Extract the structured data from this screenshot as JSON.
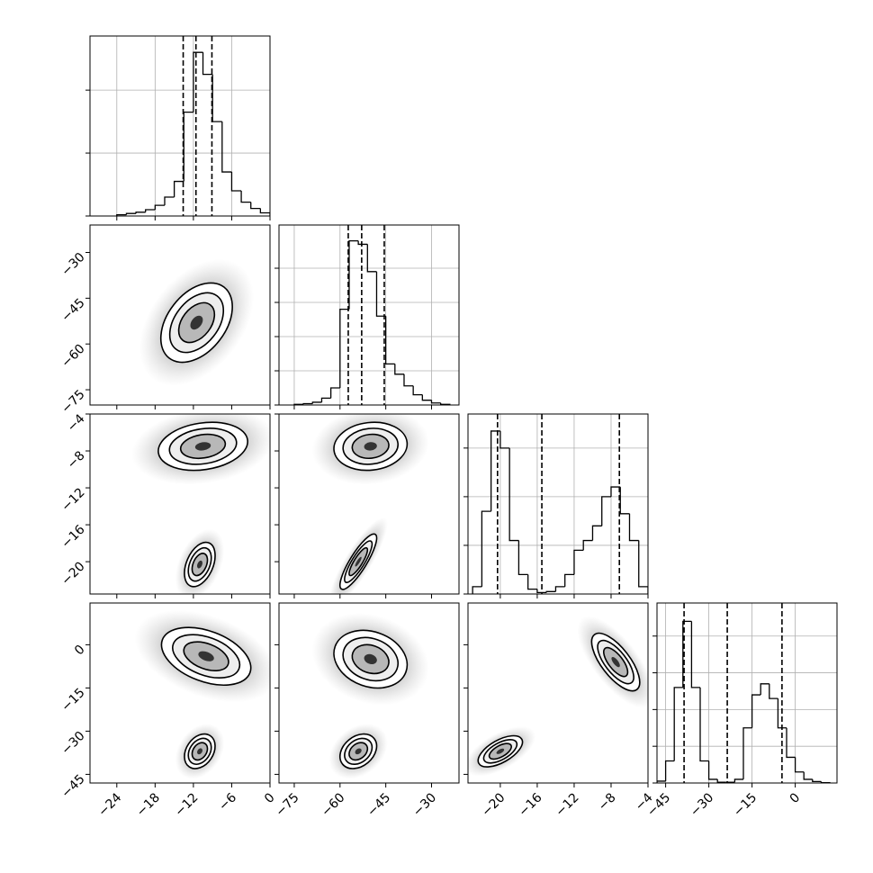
{
  "chart_data": {
    "type": "corner",
    "levels": [
      1,
      1.5,
      2
    ],
    "parameters": [
      {
        "lim": [
          -28.2,
          0
        ],
        "ticks": [
          {
            "value": -24,
            "label": "−24"
          },
          {
            "value": -18,
            "label": "−18"
          },
          {
            "value": -12,
            "label": "−12"
          },
          {
            "value": -6,
            "label": "−6"
          },
          0
        ]
      },
      {
        "lim": [
          -80,
          -21
        ],
        "ticks": [
          {
            "value": -75,
            "label": "−75"
          },
          {
            "value": -60,
            "label": "−60"
          },
          {
            "value": -45,
            "label": "−45"
          },
          {
            "value": -30,
            "label": "−30"
          }
        ]
      },
      {
        "lim": [
          -23.5,
          -4
        ],
        "ticks": [
          {
            "value": -20,
            "label": "−20"
          },
          {
            "value": -16,
            "label": "−16"
          },
          {
            "value": -12,
            "label": "−12"
          },
          {
            "value": -8,
            "label": "−8"
          },
          {
            "value": -4,
            "label": "−4"
          }
        ]
      },
      {
        "lim": [
          -48,
          14.5
        ],
        "ticks": [
          {
            "value": -45,
            "label": "−45"
          },
          {
            "value": -30,
            "label": "−30"
          },
          {
            "value": -15,
            "label": "−15"
          },
          0
        ]
      }
    ],
    "histograms": [
      {
        "bins": [
          -24,
          -22.5,
          -21,
          -19.5,
          -18,
          -16.5,
          -15,
          -13.5,
          -12,
          -10.5,
          -9,
          -7.5,
          -6,
          -4.5,
          -3,
          -1.5,
          0
        ],
        "counts": [
          20,
          40,
          60,
          100,
          170,
          300,
          550,
          1650,
          2600,
          2250,
          1500,
          700,
          400,
          220,
          120,
          50
        ],
        "ylim": [
          0,
          2860
        ],
        "yticks": [
          0,
          1000,
          2000
        ],
        "quantiles": [
          -13.6,
          -11.6,
          -9.1
        ]
      },
      {
        "bins": [
          -75,
          -72,
          -69,
          -66,
          -63,
          -60,
          -57,
          -54,
          -51,
          -48,
          -45,
          -42,
          -39,
          -36,
          -33,
          -30,
          -27,
          -24
        ],
        "counts": [
          10,
          20,
          40,
          100,
          250,
          1400,
          2400,
          2350,
          1950,
          1300,
          600,
          450,
          280,
          150,
          70,
          30,
          10
        ],
        "ylim": [
          0,
          2632
        ],
        "yticks": [
          0,
          500,
          1000,
          1500,
          2000
        ],
        "quantiles": [
          -57.3,
          -52.9,
          -45.5
        ]
      },
      {
        "bins": [
          -23,
          -22,
          -21,
          -20,
          -19,
          -18,
          -17,
          -16,
          -15,
          -14,
          -13,
          -12,
          -11,
          -10,
          -9,
          -8,
          -7,
          -6,
          -5,
          -4
        ],
        "counts": [
          150,
          1700,
          3350,
          3000,
          1100,
          400,
          100,
          30,
          50,
          150,
          400,
          900,
          1100,
          1400,
          2000,
          2200,
          1650,
          1100,
          150
        ],
        "ylim": [
          0,
          3700
        ],
        "yticks": [
          0,
          1000,
          2000,
          3000
        ],
        "quantiles": [
          -20.3,
          -15.5,
          -7.1
        ]
      },
      {
        "bins": [
          -48,
          -45,
          -42,
          -39,
          -36,
          -33,
          -30,
          -27,
          -24,
          -21,
          -18,
          -15,
          -12,
          -9,
          -6,
          -3,
          0,
          3,
          6,
          9,
          12
        ],
        "counts": [
          50,
          600,
          2600,
          4400,
          2600,
          600,
          100,
          20,
          20,
          100,
          1500,
          2400,
          2700,
          2300,
          1500,
          700,
          300,
          100,
          40,
          10
        ],
        "ylim": [
          0,
          4900
        ],
        "yticks": [
          0,
          1000,
          2000,
          3000,
          4000
        ],
        "quantiles": [
          -38.6,
          -23.6,
          -4.6
        ]
      }
    ],
    "panels": [
      [
        {
          "modes": [
            {
              "center": [
                -11.5,
                -53
              ],
              "sigma": [
                2.8,
                6.5
              ],
              "rho": 0.4
            }
          ]
        }
      ],
      [
        {
          "modes": [
            {
              "center": [
                -10.5,
                -7.5
              ],
              "sigma": [
                3.5,
                1.3
              ],
              "rho": 0.2
            },
            {
              "center": [
                -11,
                -20.3
              ],
              "sigma": [
                1.2,
                1.2
              ],
              "rho": 0.4
            }
          ]
        },
        {
          "modes": [
            {
              "center": [
                -50,
                -7.5
              ],
              "sigma": [
                6,
                1.3
              ],
              "rho": 0.1
            },
            {
              "center": [
                -54,
                -20
              ],
              "sigma": [
                3,
                1.5
              ],
              "rho": 0.85
            }
          ]
        }
      ],
      [
        {
          "modes": [
            {
              "center": [
                -10,
                -4
              ],
              "sigma": [
                3.5,
                5
              ],
              "rho": -0.4
            },
            {
              "center": [
                -11,
                -37
              ],
              "sigma": [
                1.2,
                3
              ],
              "rho": 0.3
            }
          ]
        },
        {
          "modes": [
            {
              "center": [
                -50,
                -5
              ],
              "sigma": [
                6,
                5
              ],
              "rho": -0.2
            },
            {
              "center": [
                -54,
                -37
              ],
              "sigma": [
                3,
                3
              ],
              "rho": 0.3
            }
          ]
        },
        {
          "modes": [
            {
              "center": [
                -7.5,
                -6
              ],
              "sigma": [
                1.3,
                5
              ],
              "rho": -0.7
            },
            {
              "center": [
                -20,
                -37
              ],
              "sigma": [
                1.2,
                2.7
              ],
              "rho": 0.6
            }
          ]
        }
      ]
    ]
  }
}
